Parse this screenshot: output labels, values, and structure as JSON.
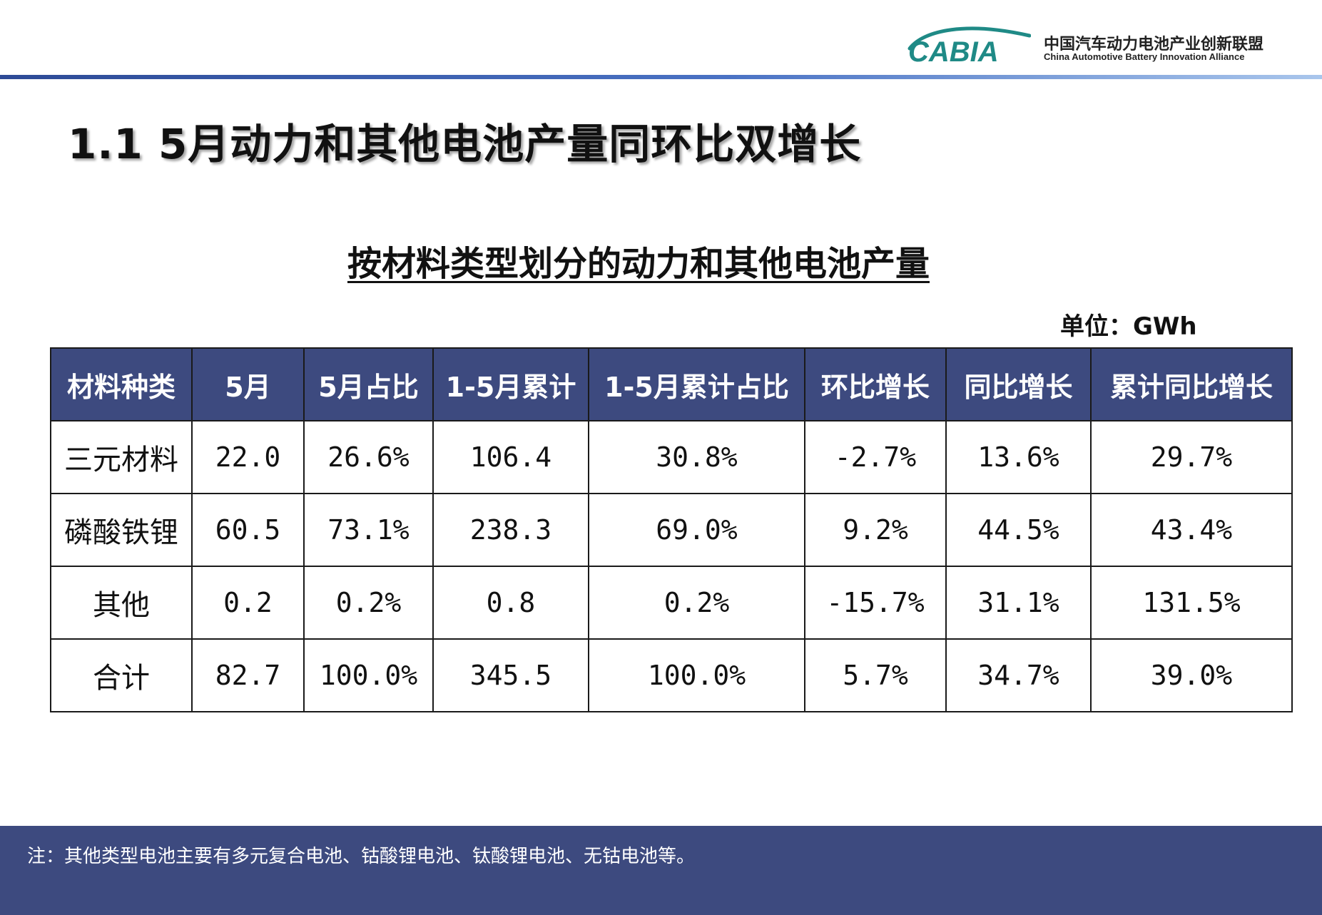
{
  "header": {
    "logo_text": "CABIA",
    "org_name_cn": "中国汽车动力电池产业创新联盟",
    "org_name_en": "China Automotive Battery Innovation Alliance",
    "colors": {
      "accent": "#3d4a7f",
      "logo_teal": "#1f8a86",
      "logo_blue": "#2b6cb0"
    }
  },
  "page_title": "1.1 5月动力和其他电池产量同环比双增长",
  "table_title": "按材料类型划分的动力和其他电池产量",
  "unit_label": "单位：GWh",
  "table": {
    "columns": [
      "材料种类",
      "5月",
      "5月占比",
      "1-5月累计",
      "1-5月累计占比",
      "环比增长",
      "同比增长",
      "累计同比增长"
    ],
    "rows": [
      [
        "三元材料",
        "22.0",
        "26.6%",
        "106.4",
        "30.8%",
        "-2.7%",
        "13.6%",
        "29.7%"
      ],
      [
        "磷酸铁锂",
        "60.5",
        "73.1%",
        "238.3",
        "69.0%",
        "9.2%",
        "44.5%",
        "43.4%"
      ],
      [
        "其他",
        "0.2",
        "0.2%",
        "0.8",
        "0.2%",
        "-15.7%",
        "31.1%",
        "131.5%"
      ],
      [
        "合计",
        "82.7",
        "100.0%",
        "345.5",
        "100.0%",
        "5.7%",
        "34.7%",
        "39.0%"
      ]
    ]
  },
  "footer": {
    "note": "注：其他类型电池主要有多元复合电池、钴酸锂电池、钛酸锂电池、无钴电池等。"
  }
}
